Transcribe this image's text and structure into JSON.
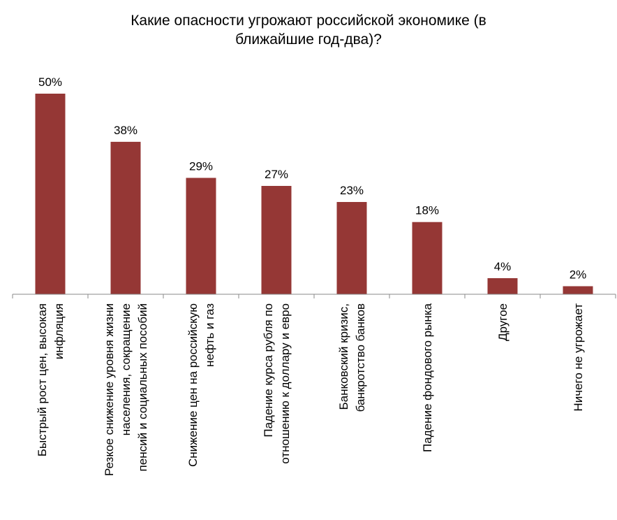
{
  "chart_data": {
    "type": "bar",
    "title_lines": [
      "Какие опасности угрожают российской экономике (в",
      "ближайшие год-два)?"
    ],
    "categories": [
      [
        "Быстрый рост цен, высокая",
        "инфляция"
      ],
      [
        "Резкое снижение уровня жизни",
        "населения, сокращение",
        "пенсий и социальных пособий"
      ],
      [
        "Снижение цен на российскую",
        "нефть и газ"
      ],
      [
        "Падение курса рубля по",
        "отношению к доллару и евро"
      ],
      [
        "Банковский кризис,",
        "банкротство банков"
      ],
      [
        "Падение фондового рынка"
      ],
      [
        "Другое"
      ],
      [
        "Ничего не угрожает"
      ]
    ],
    "values": [
      50,
      38,
      29,
      27,
      23,
      18,
      4,
      2
    ],
    "value_labels": [
      "50%",
      "38%",
      "29%",
      "27%",
      "23%",
      "18%",
      "4%",
      "2%"
    ],
    "bar_color": "#953735",
    "grid": false,
    "legend": "none"
  }
}
